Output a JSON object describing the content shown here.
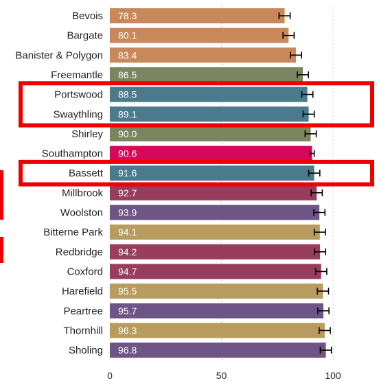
{
  "chart_data": {
    "type": "bar",
    "orientation": "horizontal",
    "title": "",
    "xlabel": "",
    "ylabel": "",
    "xlim": [
      0,
      110
    ],
    "x_ticks": [
      0,
      50,
      100
    ],
    "grid": true,
    "error_bars": true,
    "categories": [
      "Bevois",
      "Bargate",
      "Banister & Polygon",
      "Freemantle",
      "Portswood",
      "Swaythling",
      "Shirley",
      "Southampton",
      "Bassett",
      "Millbrook",
      "Woolston",
      "Bitterne Park",
      "Redbridge",
      "Coxford",
      "Harefield",
      "Peartree",
      "Thornhill",
      "Sholing"
    ],
    "values": [
      78.3,
      80.1,
      83.4,
      86.5,
      88.5,
      89.1,
      90.0,
      90.6,
      91.6,
      92.7,
      93.9,
      94.1,
      94.2,
      94.7,
      95.5,
      95.7,
      96.3,
      96.8
    ],
    "value_labels": [
      "78.3",
      "80.1",
      "83.4",
      "86.5",
      "88.5",
      "89.1",
      "90.0",
      "90.6",
      "91.6",
      "92.7",
      "93.9",
      "94.1",
      "94.2",
      "94.7",
      "95.5",
      "95.7",
      "96.3",
      "96.8"
    ],
    "errors": [
      2.5,
      2.5,
      2.5,
      2.5,
      2.5,
      2.5,
      2.5,
      1.0,
      2.5,
      2.5,
      2.5,
      2.5,
      2.5,
      2.5,
      2.5,
      2.5,
      2.5,
      2.5
    ],
    "bar_colors": [
      "#c8885a",
      "#c8885a",
      "#c8885a",
      "#7b8560",
      "#4a7a8c",
      "#4a7a8c",
      "#7b8560",
      "#d6085a",
      "#4a7a8c",
      "#993d5e",
      "#6e5585",
      "#b89b5e",
      "#993d5e",
      "#993d5e",
      "#b89b5e",
      "#6e5585",
      "#b89b5e",
      "#6e5585"
    ],
    "highlight_color": "#ee0000",
    "highlighted_groups": [
      [
        "Portswood",
        "Swaythling"
      ],
      [
        "Bassett"
      ]
    ]
  }
}
